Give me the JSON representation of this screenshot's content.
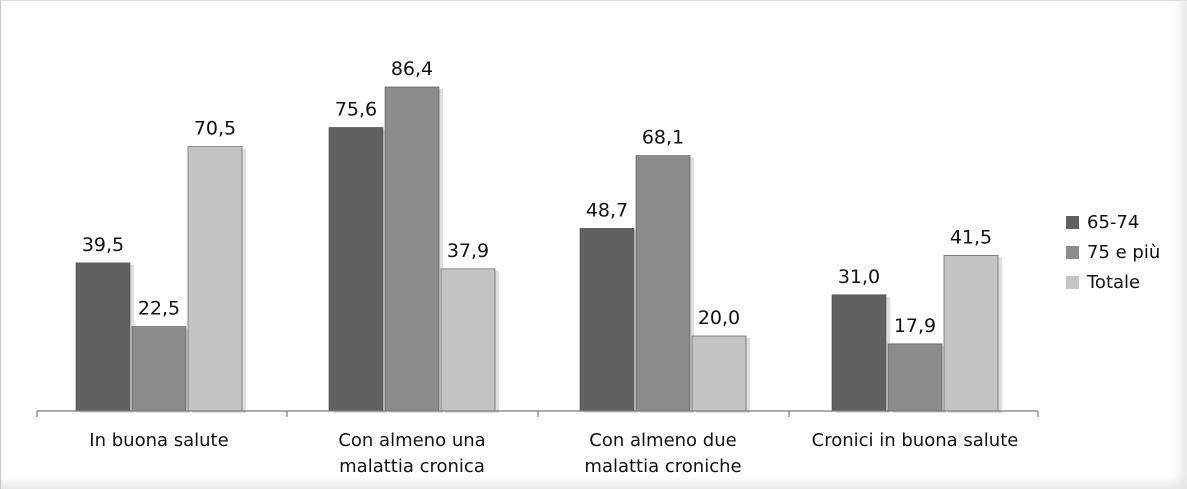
{
  "chart_data": {
    "type": "bar",
    "categories": [
      [
        "In buona salute"
      ],
      [
        "Con almeno una",
        "malattia cronica"
      ],
      [
        "Con almeno due",
        "malattia croniche"
      ],
      [
        "Cronici in buona salute"
      ]
    ],
    "series": [
      {
        "name": "65-74",
        "color": "#616161",
        "values": [
          39.5,
          75.6,
          48.7,
          31.0
        ]
      },
      {
        "name": "75 e più",
        "color": "#8c8c8c",
        "values": [
          22.5,
          86.4,
          68.1,
          17.9
        ]
      },
      {
        "name": "Totale",
        "color": "#c4c4c4",
        "values": [
          70.5,
          37.9,
          20.0,
          41.5
        ]
      }
    ],
    "data_labels": [
      [
        "39,5",
        "75,6",
        "48,7",
        "31,0"
      ],
      [
        "22,5",
        "86,4",
        "68,1",
        "17,9"
      ],
      [
        "70,5",
        "37,9",
        "20,0",
        "41,5"
      ]
    ],
    "ylim": [
      0,
      100
    ],
    "grid": false,
    "legend_position": "right"
  }
}
